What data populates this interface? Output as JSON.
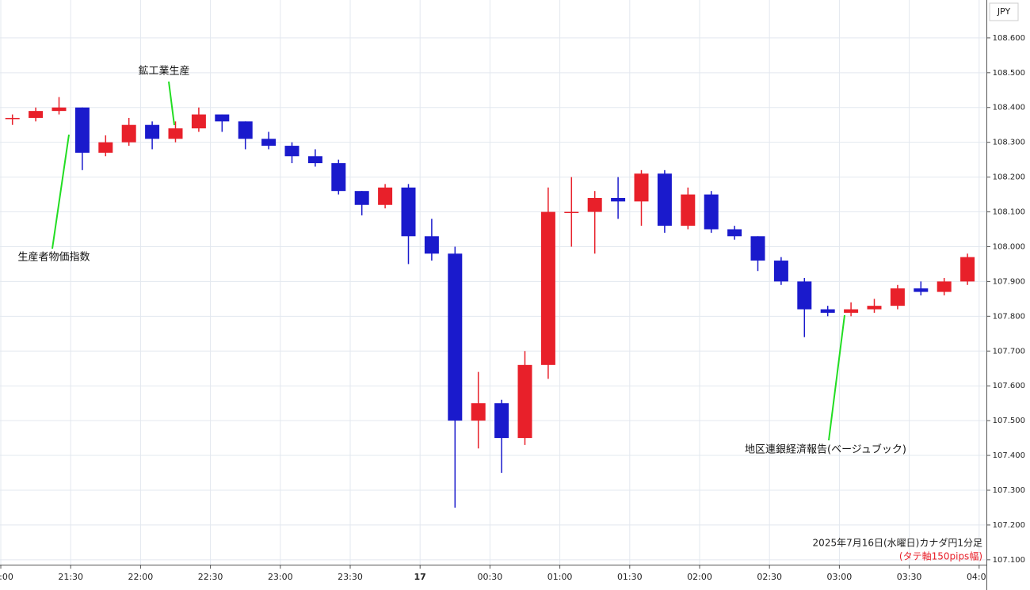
{
  "chart_data": {
    "type": "candlestick",
    "currency_label": "JPY",
    "footer_title": "2025年7月16日(水曜日)カナダ円1分足",
    "footer_note": "(タテ軸150pips幅)",
    "up_color": "#e8202a",
    "down_color": "#1a1acc",
    "grid": true,
    "annotations": [
      "鉱工業生産",
      "生産者物価指数",
      "地区連銀経済報告(ベージュブック)"
    ],
    "x": [
      "21:00",
      "21:10",
      "21:20",
      "21:30",
      "21:40",
      "21:50",
      "22:00",
      "22:10",
      "22:20",
      "22:30",
      "22:40",
      "22:50",
      "23:00",
      "23:10",
      "23:20",
      "23:30",
      "23:40",
      "23:50",
      "00:00",
      "00:10",
      "00:20",
      "00:30",
      "00:40",
      "00:50",
      "01:00",
      "01:10",
      "01:20",
      "01:30",
      "01:40",
      "01:50",
      "02:00",
      "02:10",
      "02:20",
      "02:30",
      "02:40",
      "02:50",
      "03:00",
      "03:10",
      "03:20",
      "03:30",
      "03:40",
      "03:50"
    ],
    "open": [
      108.37,
      108.37,
      108.39,
      108.4,
      108.27,
      108.3,
      108.35,
      108.31,
      108.34,
      108.38,
      108.36,
      108.31,
      108.29,
      108.26,
      108.24,
      108.16,
      108.12,
      108.17,
      108.03,
      107.98,
      107.5,
      107.55,
      107.45,
      107.66,
      108.1,
      108.1,
      108.14,
      108.13,
      108.21,
      108.06,
      108.15,
      108.05,
      108.03,
      107.96,
      107.9,
      107.82,
      107.81,
      107.82,
      107.83,
      107.88,
      107.87,
      107.9
    ],
    "high": [
      108.38,
      108.4,
      108.43,
      108.4,
      108.32,
      108.37,
      108.36,
      108.36,
      108.4,
      108.38,
      108.36,
      108.33,
      108.3,
      108.28,
      108.25,
      108.16,
      108.18,
      108.18,
      108.08,
      108.0,
      107.64,
      107.56,
      107.7,
      108.17,
      108.2,
      108.16,
      108.2,
      108.22,
      108.22,
      108.17,
      108.16,
      108.06,
      108.03,
      107.97,
      107.91,
      107.83,
      107.84,
      107.85,
      107.89,
      107.9,
      107.91,
      107.98
    ],
    "low": [
      108.35,
      108.36,
      108.38,
      108.22,
      108.26,
      108.29,
      108.28,
      108.3,
      108.33,
      108.33,
      108.28,
      108.28,
      108.24,
      108.23,
      108.15,
      108.09,
      108.11,
      107.95,
      107.96,
      107.25,
      107.42,
      107.35,
      107.43,
      107.62,
      108.0,
      107.98,
      108.08,
      108.06,
      108.04,
      108.05,
      108.04,
      108.02,
      107.93,
      107.89,
      107.74,
      107.8,
      107.8,
      107.81,
      107.82,
      107.86,
      107.86,
      107.89
    ],
    "close": [
      108.37,
      108.39,
      108.4,
      108.27,
      108.3,
      108.35,
      108.31,
      108.34,
      108.38,
      108.36,
      108.31,
      108.29,
      108.26,
      108.24,
      108.16,
      108.12,
      108.17,
      108.03,
      107.98,
      107.5,
      107.55,
      107.45,
      107.66,
      108.1,
      108.1,
      108.14,
      108.13,
      108.21,
      108.06,
      108.15,
      108.05,
      108.03,
      107.96,
      107.9,
      107.82,
      107.81,
      107.82,
      107.83,
      107.88,
      107.87,
      107.9,
      107.97
    ],
    "xticks": [
      "21:00",
      "21:30",
      "22:00",
      "22:30",
      "23:00",
      "23:30",
      {
        "value": "00:00",
        "label": "17"
      },
      "00:30",
      "01:00",
      "01:30",
      "02:00",
      "02:30",
      "03:00",
      "03:30",
      "04:00"
    ],
    "ylim": [
      107.086,
      108.709
    ],
    "yticks": [
      {
        "value": 107.1,
        "label": "107.100"
      },
      {
        "value": 107.2,
        "label": "107.200"
      },
      {
        "value": 107.3,
        "label": "107.300"
      },
      {
        "value": 107.4,
        "label": "107.400"
      },
      {
        "value": 107.5,
        "label": "107.500"
      },
      {
        "value": 107.6,
        "label": "107.600"
      },
      {
        "value": 107.7,
        "label": "107.700"
      },
      {
        "value": 107.8,
        "label": "107.800"
      },
      {
        "value": 107.9,
        "label": "107.900"
      },
      {
        "value": 108.0,
        "label": "108.000"
      },
      {
        "value": 108.1,
        "label": "108.100"
      },
      {
        "value": 108.2,
        "label": "108.200"
      },
      {
        "value": 108.3,
        "label": "108.300"
      },
      {
        "value": 108.4,
        "label": "108.400"
      },
      {
        "value": 108.5,
        "label": "108.500"
      },
      {
        "value": 108.6,
        "label": "108.600"
      }
    ]
  }
}
